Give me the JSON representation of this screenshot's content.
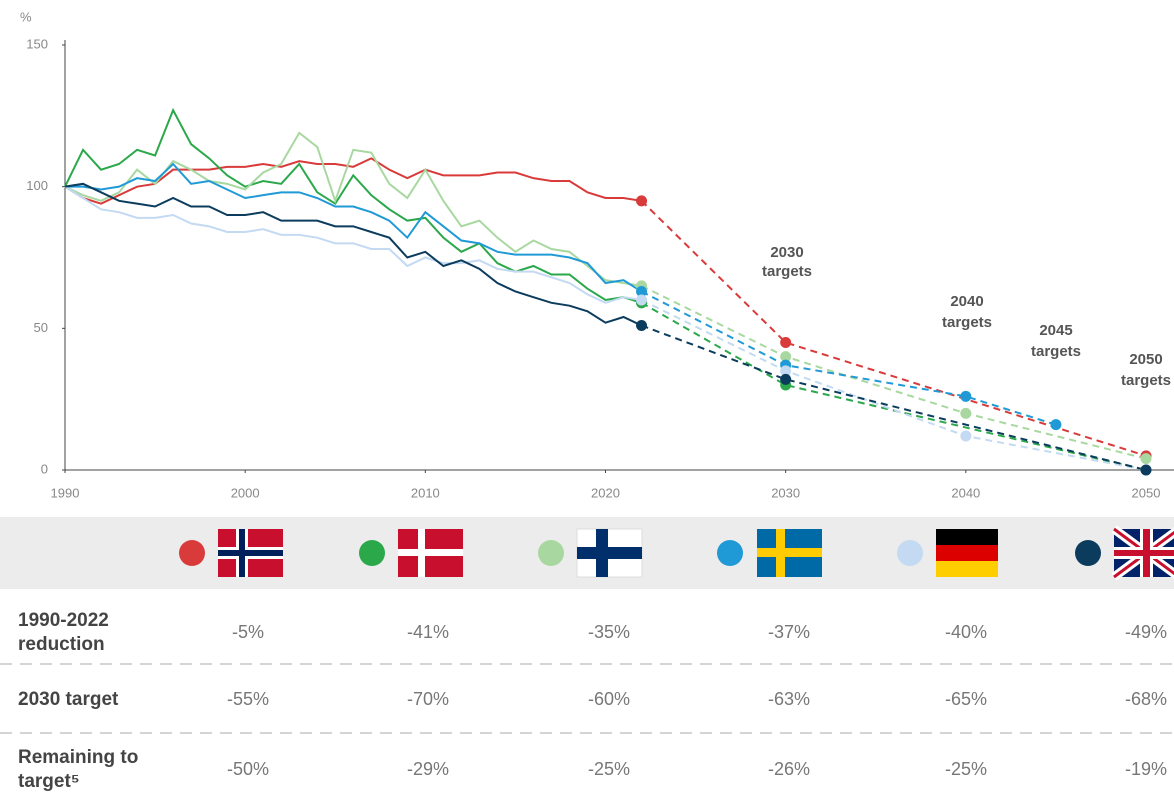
{
  "chart_data": {
    "type": "line",
    "y_unit_label": "%",
    "xlim": [
      1990,
      2050
    ],
    "xticks": [
      1990,
      2000,
      2010,
      2020,
      2030,
      2040,
      2050
    ],
    "ylim": [
      0,
      150
    ],
    "yticks": [
      0,
      50,
      100,
      150
    ],
    "x": [
      1990,
      1991,
      1992,
      1993,
      1994,
      1995,
      1996,
      1997,
      1998,
      1999,
      2000,
      2001,
      2002,
      2003,
      2004,
      2005,
      2006,
      2007,
      2008,
      2009,
      2010,
      2011,
      2012,
      2013,
      2014,
      2015,
      2016,
      2017,
      2018,
      2019,
      2020,
      2021,
      2022
    ],
    "series": [
      {
        "color": "#d93a3a",
        "values": [
          100,
          96,
          94,
          97,
          100,
          101,
          106,
          106,
          106,
          107,
          107,
          108,
          107,
          109,
          108,
          108,
          107,
          110,
          106,
          103,
          106,
          104,
          104,
          104,
          105,
          105,
          103,
          102,
          102,
          98,
          96,
          96,
          95
        ],
        "target_x": [
          2030,
          2050
        ],
        "target_values": [
          45,
          5
        ]
      },
      {
        "color": "#2aa84a",
        "values": [
          100,
          113,
          106,
          108,
          113,
          111,
          127,
          115,
          110,
          104,
          100,
          102,
          101,
          108,
          98,
          94,
          104,
          97,
          92,
          88,
          89,
          82,
          77,
          80,
          73,
          70,
          72,
          69,
          69,
          64,
          60,
          61,
          59
        ],
        "target_x": [
          2030,
          2050
        ],
        "target_values": [
          30,
          0
        ]
      },
      {
        "color": "#a8d8a0",
        "values": [
          100,
          97,
          95,
          98,
          106,
          101,
          109,
          106,
          102,
          101,
          99,
          105,
          108,
          119,
          114,
          95,
          113,
          112,
          101,
          96,
          106,
          95,
          86,
          88,
          82,
          77,
          81,
          78,
          77,
          72,
          67,
          66,
          65
        ],
        "target_x": [
          2030,
          2040,
          2050
        ],
        "target_values": [
          40,
          20,
          4
        ]
      },
      {
        "color": "#1f9ad6",
        "values": [
          100,
          100,
          99,
          100,
          103,
          102,
          108,
          101,
          102,
          99,
          96,
          97,
          98,
          98,
          96,
          93,
          93,
          91,
          88,
          82,
          91,
          86,
          81,
          80,
          77,
          76,
          76,
          76,
          75,
          73,
          66,
          67,
          63
        ],
        "target_x": [
          2030,
          2040,
          2045
        ],
        "target_values": [
          37,
          26,
          16
        ]
      },
      {
        "color": "#c3daf2",
        "values": [
          100,
          96,
          92,
          91,
          89,
          89,
          90,
          87,
          86,
          84,
          84,
          85,
          83,
          83,
          82,
          80,
          80,
          78,
          78,
          72,
          75,
          73,
          73,
          74,
          71,
          70,
          70,
          68,
          66,
          62,
          59,
          61,
          60
        ],
        "target_x": [
          2030,
          2040,
          2050
        ],
        "target_values": [
          35,
          12,
          0
        ]
      },
      {
        "color": "#0b3c5d",
        "values": [
          100,
          101,
          98,
          95,
          94,
          93,
          96,
          93,
          93,
          90,
          90,
          91,
          88,
          88,
          88,
          86,
          86,
          84,
          82,
          75,
          77,
          72,
          74,
          71,
          66,
          63,
          61,
          59,
          58,
          56,
          52,
          54,
          51
        ],
        "target_x": [
          2030,
          2050
        ],
        "target_values": [
          32,
          0
        ]
      }
    ],
    "annotations": [
      "2030 targets",
      "2040 targets",
      "2045 targets",
      "2050 targets"
    ]
  },
  "table": {
    "rows": [
      {
        "label": "1990-2022 reduction",
        "values": [
          "-5%",
          "-41%",
          "-35%",
          "-37%",
          "-40%",
          "-49%"
        ]
      },
      {
        "label": "2030 target",
        "values": [
          "-55%",
          "-70%",
          "-60%",
          "-63%",
          "-65%",
          "-68%"
        ]
      },
      {
        "label": "Remaining to target⁵",
        "values": [
          "-50%",
          "-29%",
          "-25%",
          "-26%",
          "-25%",
          "-19%"
        ]
      }
    ]
  }
}
